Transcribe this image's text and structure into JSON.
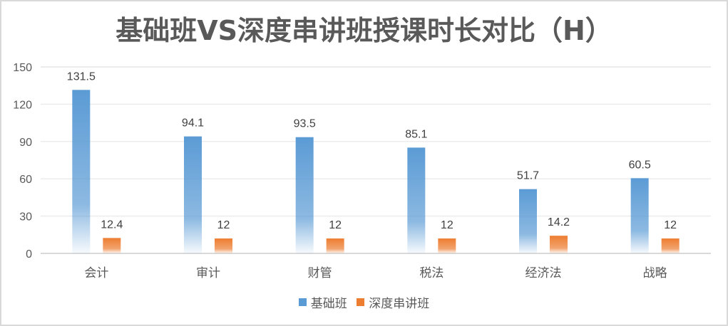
{
  "chart_data": {
    "type": "bar",
    "title": "基础班VS深度串讲班授课时长对比（H）",
    "xlabel": "",
    "ylabel": "",
    "categories": [
      "会计",
      "审计",
      "财管",
      "税法",
      "经济法",
      "战略"
    ],
    "series": [
      {
        "name": "基础班",
        "values": [
          131.5,
          94.1,
          93.5,
          85.1,
          51.7,
          60.5
        ],
        "color": "#5b9bd5"
      },
      {
        "name": "深度串讲班",
        "values": [
          12.4,
          12,
          12,
          12,
          14.2,
          12
        ],
        "color": "#ed7d31"
      }
    ],
    "ylim": [
      0,
      150
    ],
    "yticks": [
      0,
      30,
      60,
      90,
      120,
      150
    ],
    "grid": true,
    "data_labels": true,
    "legend_position": "bottom"
  },
  "colors": {
    "base": "#5b9bd5",
    "deep": "#ed7d31",
    "grid": "#d9d9d9",
    "text": "#595959"
  }
}
